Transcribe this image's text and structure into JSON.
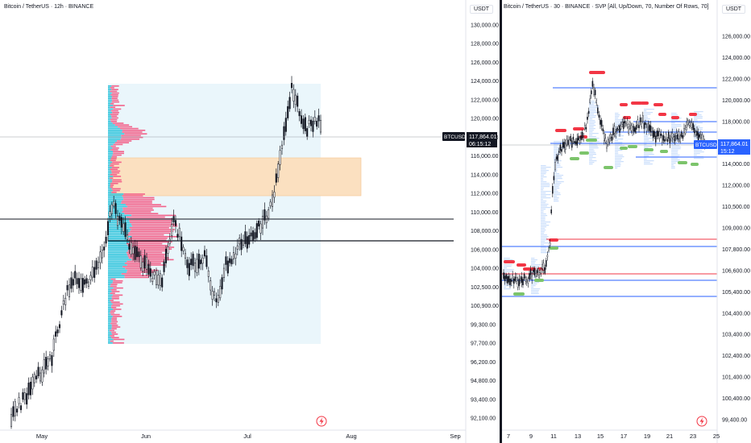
{
  "left_chart": {
    "title": "Bitcoin / TetherUS · 12h · BINANCE",
    "axis_unit": "USDT",
    "price_ticks": [
      "130,000.00",
      "128,000.00",
      "126,000.00",
      "124,000.00",
      "122,000.00",
      "120,000.00",
      "118,000.00",
      "116,000.00",
      "114,000.00",
      "112,000.00",
      "110,000.00",
      "108,000.00",
      "106,000.00",
      "104,000.00",
      "102,500.00",
      "100,900.00",
      "99,300.00",
      "97,700.00",
      "96,200.00",
      "94,800.00",
      "93,400.00",
      "92,100.00"
    ],
    "time_ticks": [
      "May",
      "Jun",
      "Jul",
      "Aug",
      "Sep"
    ],
    "symbol_label": "BTCUSDT",
    "price_label": "117,864.01",
    "countdown": "06:15:12",
    "logo_icon": "tradingview-bolt-icon"
  },
  "right_chart": {
    "title": "Bitcoin / TetherUS · 30 · BINANCE · SVP [All, Up/Down, 70, Number Of Rows, 70]",
    "axis_unit": "USDT",
    "price_ticks": [
      "126,000.00",
      "124,000.00",
      "122,000.00",
      "120,000.00",
      "118,000.00",
      "116,000.00",
      "114,000.00",
      "112,000.00",
      "110,500.00",
      "109,000.00",
      "107,800.00",
      "106,600.00",
      "105,400.00",
      "104,400.00",
      "103,400.00",
      "102,400.00",
      "101,400.00",
      "100,400.00",
      "99,400.00"
    ],
    "time_ticks": [
      "7",
      "9",
      "11",
      "13",
      "15",
      "17",
      "19",
      "21",
      "23",
      "25"
    ],
    "symbol_label": "BTCUSDT",
    "price_label": "117,864.01",
    "countdown": "15:12",
    "logo_icon": "tradingview-bolt-icon"
  },
  "colors": {
    "profile_up": "#2ec4dc",
    "profile_down": "#f2628a",
    "zone_fill": "#fbe0c0",
    "range_fill": "#eaf6fb",
    "line_blue": "#2962ff",
    "line_red": "#f23645",
    "box_red": "#f23645",
    "box_green": "#7cc46b",
    "price_tag_left": "#131722",
    "price_tag_right": "#2962ff"
  }
}
